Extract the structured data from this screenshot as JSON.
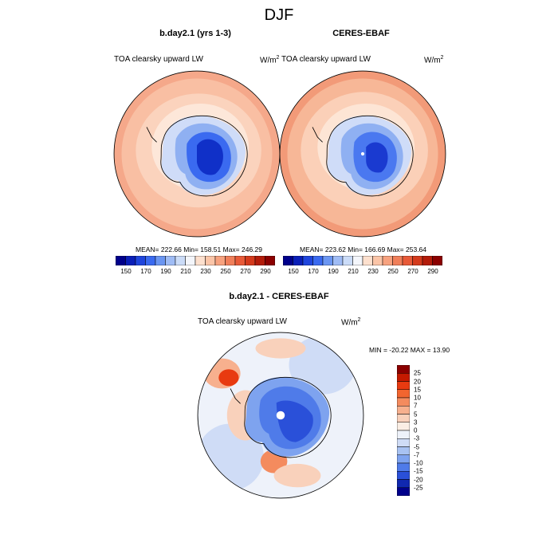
{
  "main_title": "DJF",
  "panels": [
    {
      "title": "b.day2.1 (yrs 1-3)",
      "variable": "TOA clearsky upward LW",
      "units_base": "W/m",
      "units_exp": "2",
      "stats": "MEAN= 222.66  Min= 158.51  Max= 246.29"
    },
    {
      "title": "CERES-EBAF",
      "variable": "TOA clearsky upward LW",
      "units_base": "W/m",
      "units_exp": "2",
      "stats": "MEAN= 223.62  Min= 166.69  Max= 253.64"
    }
  ],
  "difference": {
    "title": "b.day2.1 - CERES-EBAF",
    "variable": "TOA clearsky upward LW",
    "units_base": "W/m",
    "units_exp": "2",
    "stats": "MIN = -20.22 MAX =  13.90"
  },
  "colorbar_field": {
    "labels": [
      "150",
      "170",
      "190",
      "210",
      "230",
      "250",
      "270",
      "290"
    ],
    "colors": [
      "#00008b",
      "#0a1fb8",
      "#1f45dd",
      "#3a6af0",
      "#6b96f2",
      "#9fbcf5",
      "#cbdcf8",
      "#f4f6fb",
      "#fde0ce",
      "#fbc5a8",
      "#f7a27f",
      "#f07f5a",
      "#e85a38",
      "#d43a1c",
      "#b31c0a",
      "#8b0000"
    ]
  },
  "colorbar_diff": {
    "labels": [
      "25",
      "20",
      "15",
      "10",
      "7",
      "5",
      "3",
      "0",
      "-3",
      "-5",
      "-7",
      "-10",
      "-15",
      "-20",
      "-25"
    ],
    "colors": [
      "#8b0000",
      "#c41a00",
      "#e83a10",
      "#f2652f",
      "#f48b5e",
      "#f7b08e",
      "#f9d1bb",
      "#fbeee4",
      "#eef2fa",
      "#cfdcf6",
      "#a8c2f2",
      "#7ea3ef",
      "#4f7be9",
      "#2a50d9",
      "#1028b0",
      "#00008b"
    ]
  }
}
